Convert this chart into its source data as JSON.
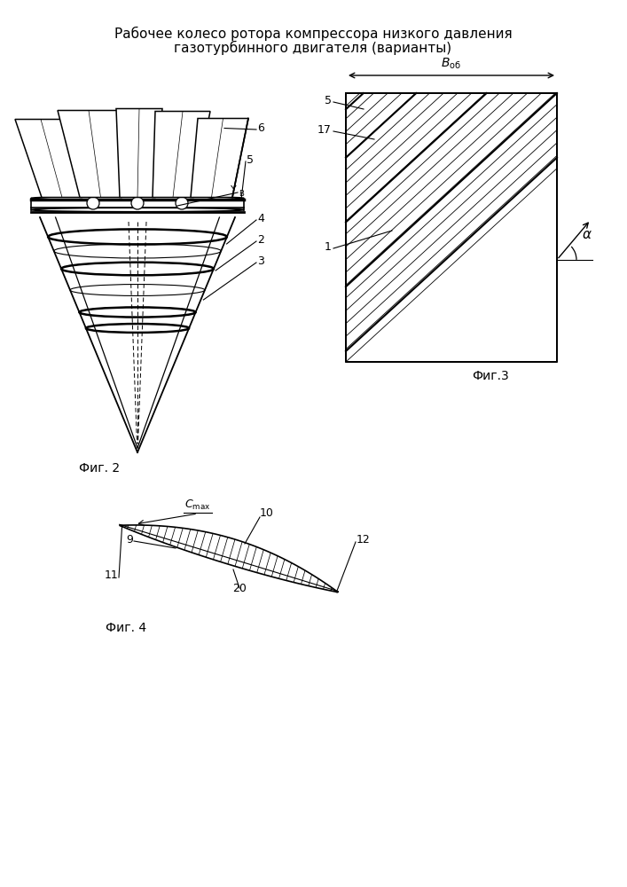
{
  "title_line1": "Рабочее колесо ротора компрессора низкого давления",
  "title_line2": "газотурбинного двигателя (варианты)",
  "fig2_caption": "Фиг. 2",
  "fig3_caption": "Фиг.3",
  "fig4_caption": "Фиг. 4",
  "bg_color": "#ffffff",
  "lc": "#000000"
}
